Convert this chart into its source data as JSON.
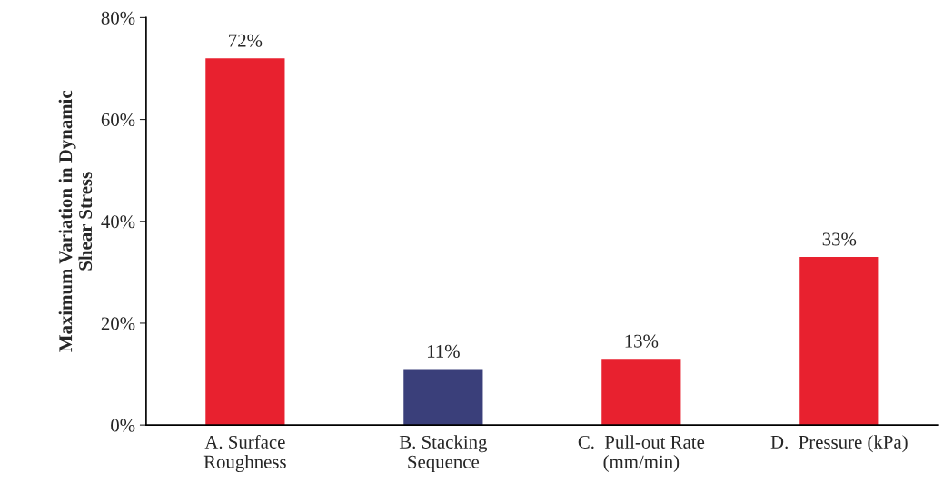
{
  "chart_data": {
    "type": "bar",
    "ylabel": "Maximum Variation in Dynamic\nShear Stress",
    "categories": [
      "A. Surface\nRoughness",
      "B. Stacking\nSequence",
      "C.  Pull-out Rate\n(mm/min)",
      "D.  Pressure (kPa)"
    ],
    "values": [
      72,
      11,
      13,
      33
    ],
    "colors": [
      "#e8212f",
      "#3a3f7a",
      "#e8212f",
      "#e8212f"
    ],
    "value_labels": [
      "72%",
      "11%",
      "13%",
      "33%"
    ],
    "ylim": [
      0,
      80
    ],
    "yticks": [
      {
        "value": 0,
        "label": "0%"
      },
      {
        "value": 20,
        "label": "20%"
      },
      {
        "value": 40,
        "label": "40%"
      },
      {
        "value": 60,
        "label": "60%"
      },
      {
        "value": 80,
        "label": "80%"
      }
    ],
    "grid": false,
    "legend": false
  }
}
